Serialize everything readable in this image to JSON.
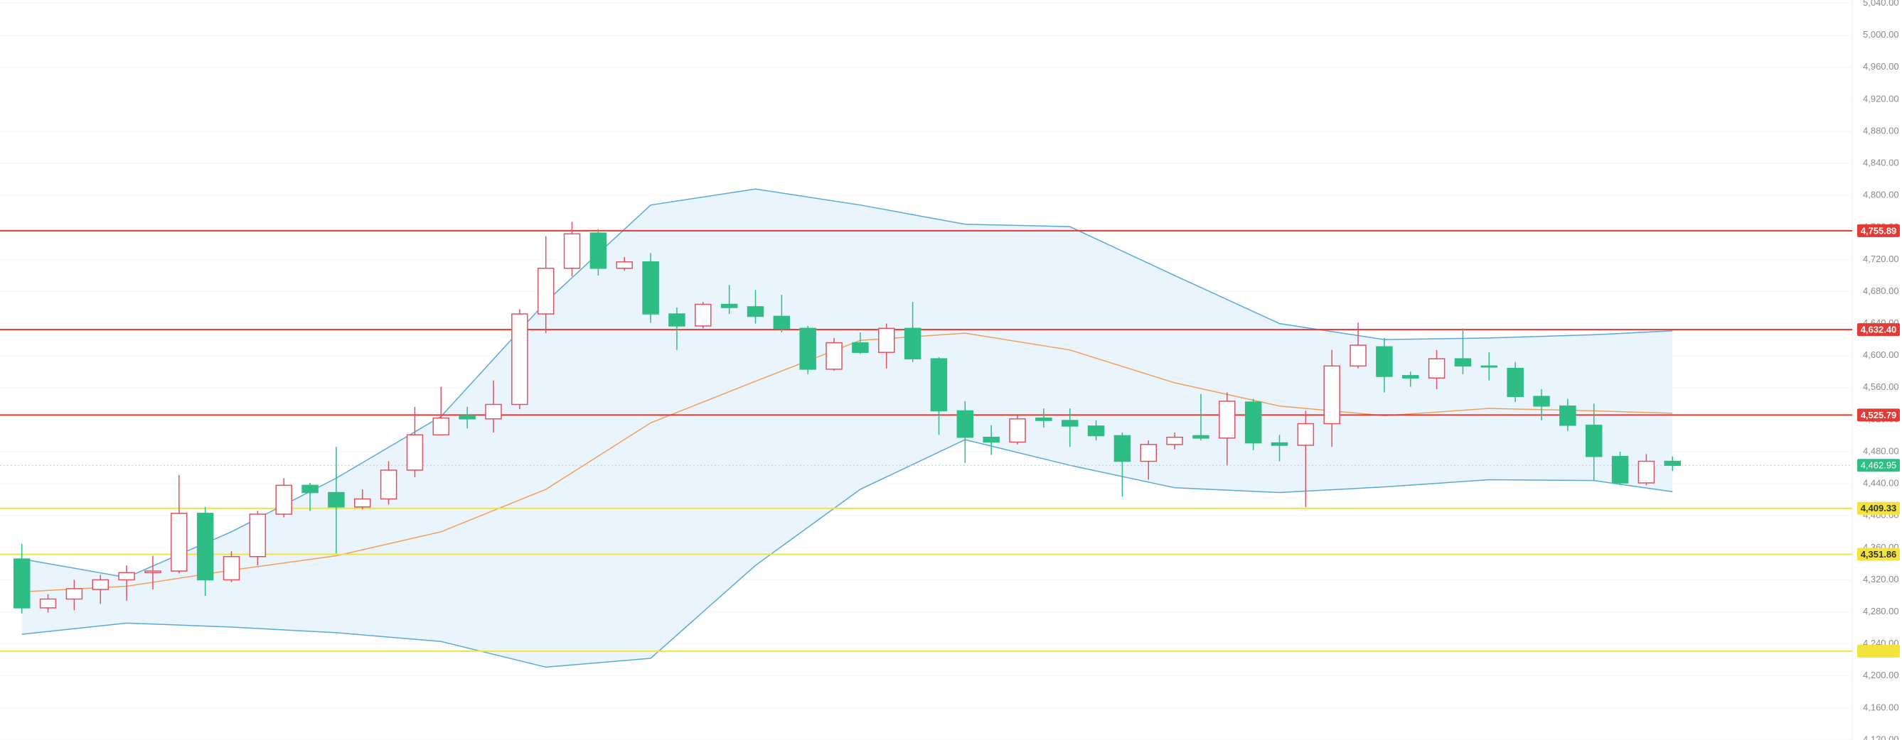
{
  "chart_data": {
    "type": "candlestick",
    "up_color": "#e0525f",
    "down_color": "#2ebd85",
    "open": [
      4346,
      4285,
      4296,
      4308,
      4320,
      4329,
      4331,
      4403,
      4320,
      4349,
      4402,
      4438,
      4429,
      4411,
      4421,
      4457,
      4501,
      4525,
      4521,
      4539,
      4652,
      4709,
      4753,
      4709,
      4717,
      4652,
      4637,
      4664,
      4661,
      4649,
      4634,
      4583,
      4616,
      4604,
      4634,
      4596,
      4531,
      4498,
      4492,
      4522,
      4519,
      4512,
      4500,
      4468,
      4489,
      4500,
      4497,
      4542,
      4491,
      4488,
      4515,
      4587,
      4611,
      4575,
      4572,
      4596,
      4587,
      4584,
      4549,
      4537,
      4513,
      4474,
      4441,
      4468
    ],
    "high": [
      4365,
      4302,
      4320,
      4326,
      4338,
      4350,
      4451,
      4411,
      4356,
      4406,
      4447,
      4441,
      4486,
      4433,
      4468,
      4536,
      4561,
      4536,
      4569,
      4658,
      4749,
      4767,
      4758,
      4723,
      4728,
      4660,
      4667,
      4688,
      4682,
      4676,
      4637,
      4622,
      4629,
      4640,
      4667,
      4598,
      4543,
      4513,
      4525,
      4534,
      4534,
      4519,
      4504,
      4494,
      4504,
      4552,
      4554,
      4546,
      4501,
      4531,
      4607,
      4641,
      4622,
      4580,
      4607,
      4634,
      4604,
      4592,
      4558,
      4546,
      4540,
      4480,
      4477,
      4474
    ],
    "low": [
      4278,
      4279,
      4282,
      4290,
      4294,
      4308,
      4328,
      4300,
      4317,
      4338,
      4398,
      4406,
      4353,
      4408,
      4414,
      4448,
      4501,
      4509,
      4504,
      4533,
      4628,
      4699,
      4700,
      4706,
      4641,
      4607,
      4634,
      4652,
      4640,
      4629,
      4577,
      4581,
      4602,
      4584,
      4592,
      4501,
      4466,
      4476,
      4489,
      4510,
      4486,
      4494,
      4424,
      4445,
      4483,
      4494,
      4463,
      4482,
      4468,
      4411,
      4486,
      4584,
      4554,
      4561,
      4558,
      4577,
      4569,
      4542,
      4519,
      4506,
      4444,
      4438,
      4438,
      4456
    ],
    "close": [
      4285,
      4296,
      4309,
      4320,
      4329,
      4331,
      4403,
      4320,
      4349,
      4402,
      4438,
      4429,
      4411,
      4421,
      4457,
      4501,
      4522,
      4521,
      4539,
      4652,
      4709,
      4752,
      4709,
      4717,
      4652,
      4637,
      4664,
      4660,
      4649,
      4634,
      4583,
      4616,
      4604,
      4634,
      4596,
      4531,
      4498,
      4492,
      4521,
      4519,
      4512,
      4500,
      4468,
      4489,
      4498,
      4497,
      4543,
      4491,
      4488,
      4515,
      4587,
      4613,
      4574,
      4572,
      4596,
      4587,
      4586,
      4549,
      4537,
      4513,
      4474,
      4441,
      4468,
      4463
    ],
    "bands": {
      "x": [
        0,
        4,
        8,
        12,
        16,
        20,
        24,
        28,
        32,
        36,
        40,
        44,
        48,
        52,
        56,
        60,
        63
      ],
      "upper": [
        4346,
        4323,
        4380,
        4447,
        4524,
        4667,
        4788,
        4808,
        4788,
        4764,
        4761,
        4700,
        4640,
        4620,
        4622,
        4626,
        4631
      ],
      "middle": [
        4305,
        4312,
        4332,
        4350,
        4380,
        4433,
        4516,
        4568,
        4619,
        4628,
        4607,
        4566,
        4537,
        4525,
        4534,
        4531,
        4528
      ],
      "lower": [
        4252,
        4266,
        4261,
        4254,
        4243,
        4211,
        4222,
        4338,
        4433,
        4495,
        4463,
        4435,
        4429,
        4436,
        4445,
        4444,
        4430
      ],
      "band_color": "#5aa9d6",
      "middle_color": "#f0a05a",
      "fill": "#eaf4fd"
    },
    "levels": [
      {
        "value": 4755.89,
        "label": "4,755.89",
        "color": "#e53935"
      },
      {
        "value": 4632.4,
        "label": "4,632.40",
        "color": "#e53935"
      },
      {
        "value": 4525.79,
        "label": "4,525.79",
        "color": "#e53935"
      },
      {
        "value": 4409.33,
        "label": "4,409.33",
        "color": "#f2e33d"
      },
      {
        "value": 4351.86,
        "label": "4,351.86",
        "color": "#f2e33d"
      },
      {
        "value": 4231,
        "color": "#f2e33d"
      }
    ],
    "last_price": {
      "value": 4462.95,
      "label": "4,462.95",
      "color": "#2ebd85"
    },
    "ylim": [
      4120,
      5044
    ],
    "yticks": [
      {
        "value": 4120,
        "label": "4,120.00"
      },
      {
        "value": 4160,
        "label": "4,160.00"
      },
      {
        "value": 4200,
        "label": "4,200.00"
      },
      {
        "value": 4240,
        "label": "4,240.00"
      },
      {
        "value": 4280,
        "label": "4,280.00"
      },
      {
        "value": 4320,
        "label": "4,320.00"
      },
      {
        "value": 4360,
        "label": "4,360.00"
      },
      {
        "value": 4400,
        "label": "4,400.00"
      },
      {
        "value": 4440,
        "label": "4,440.00"
      },
      {
        "value": 4480,
        "label": "4,480.00"
      },
      {
        "value": 4520,
        "label": "4,520.00"
      },
      {
        "value": 4560,
        "label": "4,560.00"
      },
      {
        "value": 4600,
        "label": "4,600.00"
      },
      {
        "value": 4640,
        "label": "4,640.00"
      },
      {
        "value": 4680,
        "label": "4,680.00"
      },
      {
        "value": 4720,
        "label": "4,720.00"
      },
      {
        "value": 4760,
        "label": "4,760.00"
      },
      {
        "value": 4800,
        "label": "4,800.00"
      },
      {
        "value": 4840,
        "label": "4,840.00"
      },
      {
        "value": 4880,
        "label": "4,880.00"
      },
      {
        "value": 4920,
        "label": "4,920.00"
      },
      {
        "value": 4960,
        "label": "4,960.00"
      },
      {
        "value": 5000,
        "label": "5,000.00"
      },
      {
        "value": 5040,
        "label": "5,040.00"
      }
    ],
    "grid": true
  }
}
